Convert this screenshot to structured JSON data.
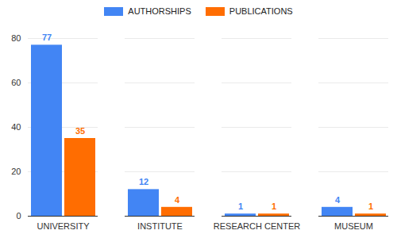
{
  "chart_data": {
    "type": "bar",
    "categories": [
      "UNIVERSITY",
      "INSTITUTE",
      "RESEARCH CENTER",
      "MUSEUM"
    ],
    "series": [
      {
        "name": "AUTHORSHIPS",
        "color": "#4285f4",
        "values": [
          77,
          12,
          1,
          4
        ]
      },
      {
        "name": "PUBLICATIONS",
        "color": "#ff6d01",
        "values": [
          35,
          4,
          1,
          1
        ]
      }
    ],
    "ylim": [
      0,
      80
    ],
    "yticks": [
      0,
      20,
      40,
      60,
      80
    ],
    "grid": true,
    "legend": "top",
    "data_labels": true
  }
}
